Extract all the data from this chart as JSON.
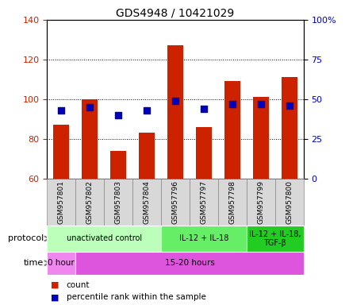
{
  "title": "GDS4948 / 10421029",
  "samples": [
    "GSM957801",
    "GSM957802",
    "GSM957803",
    "GSM957804",
    "GSM957796",
    "GSM957797",
    "GSM957798",
    "GSM957799",
    "GSM957800"
  ],
  "count_values": [
    87,
    100,
    74,
    83,
    127,
    86,
    109,
    101,
    111
  ],
  "percentile_values": [
    43,
    45,
    40,
    43,
    49,
    44,
    47,
    47,
    46
  ],
  "ylim_left": [
    60,
    140
  ],
  "ylim_right": [
    0,
    100
  ],
  "yticks_left": [
    60,
    80,
    100,
    120,
    140
  ],
  "yticks_right": [
    0,
    25,
    50,
    75,
    100
  ],
  "bar_color": "#cc2200",
  "dot_color": "#0000bb",
  "protocol_groups": [
    {
      "label": "unactivated control",
      "start": 0,
      "end": 4,
      "color": "#bbffbb"
    },
    {
      "label": "IL-12 + IL-18",
      "start": 4,
      "end": 7,
      "color": "#66ee66"
    },
    {
      "label": "IL-12 + IL-18,\nTGF-β",
      "start": 7,
      "end": 9,
      "color": "#22cc22"
    }
  ],
  "time_groups": [
    {
      "label": "0 hour",
      "start": 0,
      "end": 1,
      "color": "#ee88ee"
    },
    {
      "label": "15-20 hours",
      "start": 1,
      "end": 9,
      "color": "#dd55dd"
    }
  ],
  "legend_count_label": "count",
  "legend_pct_label": "percentile rank within the sample",
  "left_axis_color": "#cc2200",
  "right_axis_color": "#0000bb",
  "bar_width": 0.55,
  "dot_size": 28,
  "background_color": "#ffffff",
  "plot_bg_color": "#ffffff",
  "sample_cell_color": "#d8d8d8",
  "sample_cell_border": "#888888"
}
